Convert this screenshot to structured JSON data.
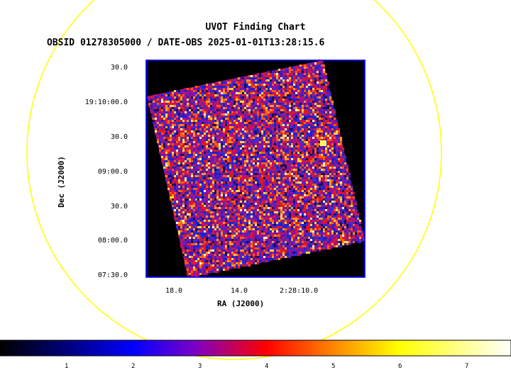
{
  "title": "UVOT Finding Chart",
  "subtitle": "OBSID 01278305000 / DATE-OBS 2025-01-01T13:28:15.6",
  "axes": {
    "xlabel": "RA (J2000)",
    "ylabel": "Dec (J2000)",
    "dec_ticks": [
      "30.0",
      "19:10:00.0",
      "30.0",
      "09:00.0",
      "30.0",
      "08:00.0",
      "07:30.0"
    ],
    "ra_ticks": [
      "18.0",
      "14.0",
      "2:28:10.0"
    ]
  },
  "colorbar": {
    "ticks": [
      "1",
      "2",
      "3",
      "4",
      "5",
      "6",
      "7"
    ],
    "gradient_stops": [
      "#000000",
      "#00007a",
      "#0000ff",
      "#7a00c8",
      "#ff0000",
      "#ff7a00",
      "#ffff00",
      "#ffffff"
    ]
  },
  "colors": {
    "circle": "#ffff00",
    "frame": "#0000ff",
    "background": "#000000"
  }
}
